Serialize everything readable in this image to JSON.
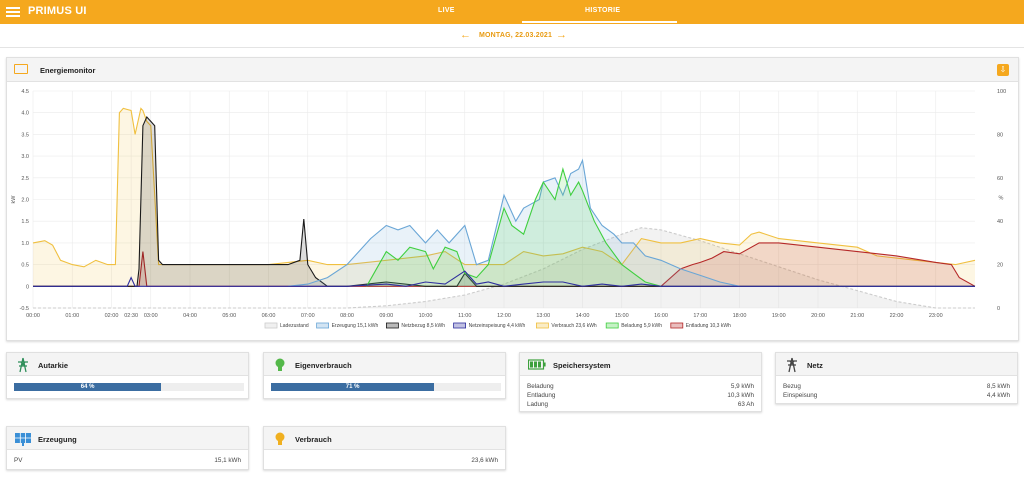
{
  "app": {
    "title": "PRIMUS UI",
    "tabs": [
      {
        "label": "LIVE"
      },
      {
        "label": "HISTORIE"
      }
    ],
    "active_tab": "HISTORIE"
  },
  "date_nav": {
    "date": "MONTAG, 22.03.2021",
    "prev_icon": "arrow-left-icon",
    "next_icon": "arrow-right-icon"
  },
  "colors": {
    "accent": "#f5a81e",
    "erzeugung": "#6aa6d6",
    "netzbezug": "#1a1a1a",
    "netzeinspeisung": "#2e2e9e",
    "verbrauch": "#f0c040",
    "beladung": "#3fcf3f",
    "entladung": "#b52828",
    "ladezustand": "#cccccc",
    "bar": "#3b6da1"
  },
  "energy_monitor": {
    "title": "Energiemonitor",
    "download_icon": "download-icon",
    "chart_data": {
      "type": "line",
      "xlabel": "",
      "ylabel": "kW",
      "y2label": "%",
      "ylim": [
        -0.5,
        4.5
      ],
      "y2lim": [
        0,
        100
      ],
      "y_ticks": [
        "4.5",
        "4.0",
        "3.5",
        "3.0",
        "2.5",
        "2.0",
        "1.5",
        "1.0",
        "0.5",
        "0",
        "-0.5"
      ],
      "y2_ticks": [
        "100",
        "80",
        "60",
        "40",
        "20",
        "0"
      ],
      "x_ticks": [
        "00:00",
        "01:00",
        "02:00",
        "02:30",
        "03:00",
        "04:00",
        "05:00",
        "06:00",
        "07:00",
        "08:00",
        "09:00",
        "10:00",
        "11:00",
        "12:00",
        "13:00",
        "14:00",
        "15:00",
        "16:00",
        "17:00",
        "18:00",
        "19:00",
        "20:00",
        "21:00",
        "22:00",
        "23:00"
      ],
      "x_tick_hours": [
        0,
        1,
        2,
        2.5,
        3,
        4,
        5,
        6,
        7,
        8,
        9,
        10,
        11,
        12,
        13,
        14,
        15,
        16,
        17,
        18,
        19,
        20,
        21,
        22,
        23
      ],
      "x_range": [
        0,
        24
      ],
      "legend_position": "bottom",
      "series": [
        {
          "name": "Ladezustand",
          "axis": "right",
          "dashed": true,
          "fill": true,
          "x": [
            0,
            8,
            9,
            10,
            11,
            12,
            13,
            14,
            15,
            15.5,
            16,
            17,
            18,
            19,
            20,
            21,
            22,
            23,
            24
          ],
          "values": [
            0,
            0,
            1,
            3,
            6,
            11,
            18,
            27,
            34,
            37,
            36,
            31,
            25,
            19,
            13,
            8,
            3,
            0,
            0
          ]
        },
        {
          "name": "Erzeugung 15,1 kWh",
          "axis": "left",
          "fill": true,
          "x": [
            6.5,
            7,
            7.5,
            8,
            8.3,
            8.6,
            9,
            9.3,
            9.6,
            10,
            10.3,
            10.6,
            11,
            11.3,
            11.6,
            12,
            12.3,
            12.5,
            12.7,
            12.9,
            13,
            13.3,
            13.5,
            13.7,
            13.9,
            14,
            14.2,
            14.5,
            14.8,
            15,
            15.3,
            15.6,
            16,
            16.5,
            17,
            17.5,
            18
          ],
          "values": [
            0,
            0.05,
            0.2,
            0.5,
            0.8,
            1.1,
            1.4,
            1.3,
            1.4,
            1.0,
            1.3,
            1.0,
            1.4,
            0.5,
            0.6,
            2.1,
            1.5,
            1.8,
            1.9,
            2.0,
            2.4,
            2.5,
            2.1,
            2.6,
            2.7,
            2.9,
            1.8,
            1.4,
            1.2,
            1.0,
            1.0,
            0.7,
            0.6,
            0.4,
            0.25,
            0.1,
            0
          ]
        },
        {
          "name": "Netzbezug 8,5 kWh",
          "axis": "left",
          "fill": true,
          "x": [
            0,
            2.5,
            2.65,
            2.7,
            2.8,
            2.9,
            3.0,
            3.1,
            3.2,
            3.3,
            4,
            5,
            6,
            6.5,
            6.8,
            6.9,
            7.0,
            7.2,
            7.5,
            8,
            9,
            10,
            10.8,
            11,
            11.3,
            12,
            24
          ],
          "values": [
            0,
            0,
            0,
            0.4,
            3.7,
            3.9,
            3.8,
            3.7,
            0.6,
            0.5,
            0.5,
            0.5,
            0.5,
            0.5,
            0.6,
            1.55,
            0.5,
            0.2,
            0,
            0,
            0.1,
            0,
            0,
            0.3,
            0,
            0,
            0
          ]
        },
        {
          "name": "Netzeinspeisung 4,4 kWh",
          "axis": "left",
          "fill": false,
          "x": [
            0,
            2.4,
            2.5,
            2.6,
            8,
            9,
            9.5,
            10,
            10.5,
            11,
            11.3,
            11.6,
            12,
            12.5,
            13,
            13.5,
            14,
            14.5,
            15,
            15.5,
            16,
            24
          ],
          "values": [
            0,
            0,
            0.2,
            0,
            0,
            0.05,
            0,
            0.1,
            0.05,
            0.35,
            0.05,
            0.1,
            0,
            0.05,
            0.1,
            0.1,
            0,
            0.05,
            0,
            0.05,
            0,
            0
          ]
        },
        {
          "name": "Verbrauch 23,6 kWh",
          "axis": "left",
          "fill": true,
          "x": [
            0,
            0.3,
            0.5,
            0.7,
            1,
            1.3,
            1.6,
            1.9,
            2.1,
            2.2,
            2.3,
            2.5,
            2.6,
            2.75,
            2.8,
            2.9,
            3.0,
            3.2,
            3.4,
            4,
            5,
            6,
            7,
            7.5,
            8,
            9,
            10,
            10.5,
            11,
            11.5,
            12,
            12.5,
            13,
            13.5,
            14,
            14.5,
            15,
            15.5,
            16,
            16.5,
            17,
            17.5,
            18,
            18.3,
            18.5,
            19,
            20,
            21,
            21.5,
            22,
            22.5,
            23,
            23.5,
            24
          ],
          "values": [
            1.0,
            1.05,
            0.95,
            0.6,
            0.5,
            0.45,
            0.6,
            0.5,
            0.5,
            4.0,
            4.1,
            4.05,
            3.5,
            4.1,
            4.05,
            3.8,
            3.7,
            0.5,
            0.5,
            0.5,
            0.5,
            0.5,
            0.6,
            0.5,
            0.5,
            0.6,
            0.7,
            0.8,
            0.5,
            0.5,
            0.5,
            0.8,
            0.7,
            0.75,
            0.9,
            0.8,
            0.5,
            1.1,
            1.0,
            1.0,
            1.1,
            1.0,
            0.95,
            1.2,
            1.25,
            1.1,
            1.0,
            0.9,
            0.7,
            0.65,
            0.6,
            0.55,
            0.5,
            0.6
          ]
        },
        {
          "name": "Beladung 5,9 kWh",
          "axis": "left",
          "fill": true,
          "x": [
            8.5,
            9,
            9.3,
            9.6,
            10,
            10.2,
            10.5,
            10.8,
            11,
            11.3,
            11.6,
            12,
            12.2,
            12.5,
            12.8,
            13,
            13.3,
            13.5,
            13.7,
            13.9,
            14,
            14.3,
            14.6,
            15,
            15.3,
            15.6,
            16
          ],
          "values": [
            0,
            0.8,
            0.6,
            0.9,
            0.8,
            0.4,
            0.9,
            0.8,
            0.3,
            0.2,
            0.5,
            1.8,
            1.4,
            1.2,
            2.0,
            2.4,
            2.0,
            2.7,
            2.1,
            2.4,
            2.2,
            1.5,
            1.0,
            0.5,
            0.3,
            0.1,
            0
          ]
        },
        {
          "name": "Entladung 10,3 kWh",
          "axis": "left",
          "fill": true,
          "x": [
            0,
            2.6,
            2.7,
            2.8,
            2.9,
            3.0,
            16,
            16.5,
            16.8,
            17,
            17.3,
            17.6,
            18,
            18.5,
            19,
            20,
            21,
            22,
            23,
            23.4,
            23.6,
            24
          ],
          "values": [
            0,
            0,
            0,
            0.8,
            0,
            0,
            0,
            0.4,
            0.5,
            0.55,
            0.65,
            0.8,
            0.75,
            1.0,
            1.0,
            0.9,
            0.8,
            0.7,
            0.55,
            0.5,
            0.2,
            0
          ]
        }
      ]
    }
  },
  "cards": {
    "autarkie": {
      "title": "Autarkie",
      "icon": "power-tower-icon",
      "percent": 64,
      "percent_label": "64 %"
    },
    "eigenverbrauch": {
      "title": "Eigenverbrauch",
      "icon": "lightbulb-icon",
      "percent": 71,
      "percent_label": "71 %"
    },
    "speichersystem": {
      "title": "Speichersystem",
      "icon": "battery-icon",
      "rows": [
        {
          "label": "Beladung",
          "value": "5,9 kWh"
        },
        {
          "label": "Entladung",
          "value": "10,3 kWh"
        },
        {
          "label": "Ladung",
          "value": "63 Ah"
        }
      ]
    },
    "netz": {
      "title": "Netz",
      "icon": "power-pylon-icon",
      "rows": [
        {
          "label": "Bezug",
          "value": "8,5 kWh"
        },
        {
          "label": "Einspeisung",
          "value": "4,4 kWh"
        }
      ]
    },
    "erzeugung": {
      "title": "Erzeugung",
      "icon": "solar-panel-icon",
      "rows": [
        {
          "label": "PV",
          "value": "15,1 kWh"
        }
      ]
    },
    "verbrauch": {
      "title": "Verbrauch",
      "icon": "lightbulb-icon",
      "rows": [
        {
          "label": "",
          "value": "23,6 kWh"
        }
      ]
    }
  }
}
